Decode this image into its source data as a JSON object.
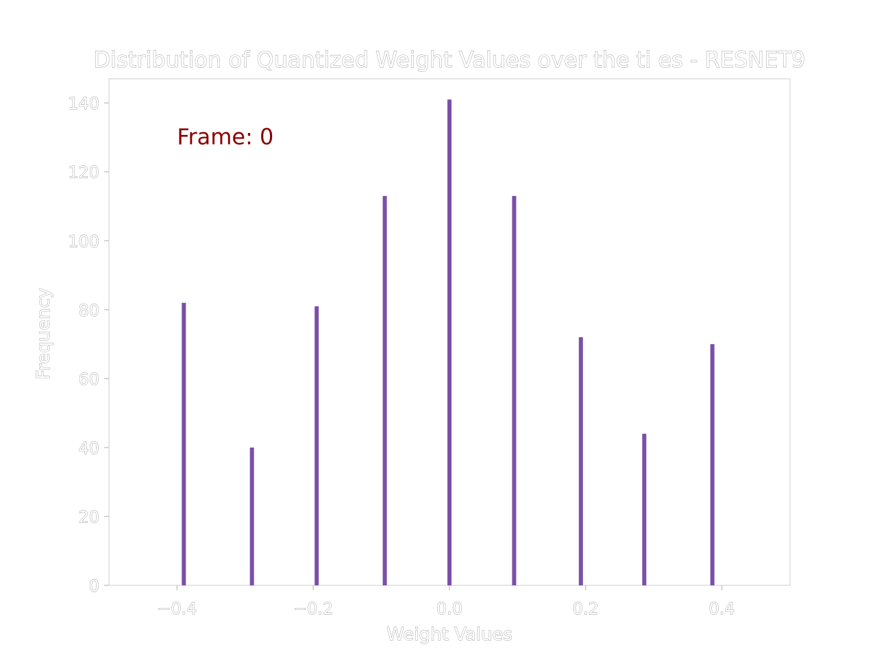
{
  "chart_data": {
    "type": "bar",
    "title": "Distribution of Quantized Weight Values over the ti es - RESNET9",
    "xlabel": "Weight Values",
    "ylabel": "Frequency",
    "xlim": [
      -0.5,
      0.5
    ],
    "ylim": [
      0,
      147
    ],
    "x": [
      -0.39,
      -0.29,
      -0.195,
      -0.095,
      0.0,
      0.095,
      0.193,
      0.286,
      0.386
    ],
    "values": [
      82,
      40,
      81,
      113,
      141,
      113,
      72,
      44,
      70
    ],
    "bar_color": "#7b4fa8",
    "x_ticks": [
      -0.4,
      -0.2,
      0.0,
      0.2,
      0.4
    ],
    "x_tick_labels": [
      "−0.4",
      "−0.2",
      "0.0",
      "0.2",
      "0.4"
    ],
    "y_ticks": [
      0,
      20,
      40,
      60,
      80,
      100,
      120,
      140
    ],
    "y_tick_labels": [
      "0",
      "20",
      "40",
      "60",
      "80",
      "100",
      "120",
      "140"
    ],
    "grid": false,
    "annotation": {
      "text": "Frame: 0",
      "x": -0.4,
      "y": 128,
      "color": "#8b0000"
    }
  }
}
